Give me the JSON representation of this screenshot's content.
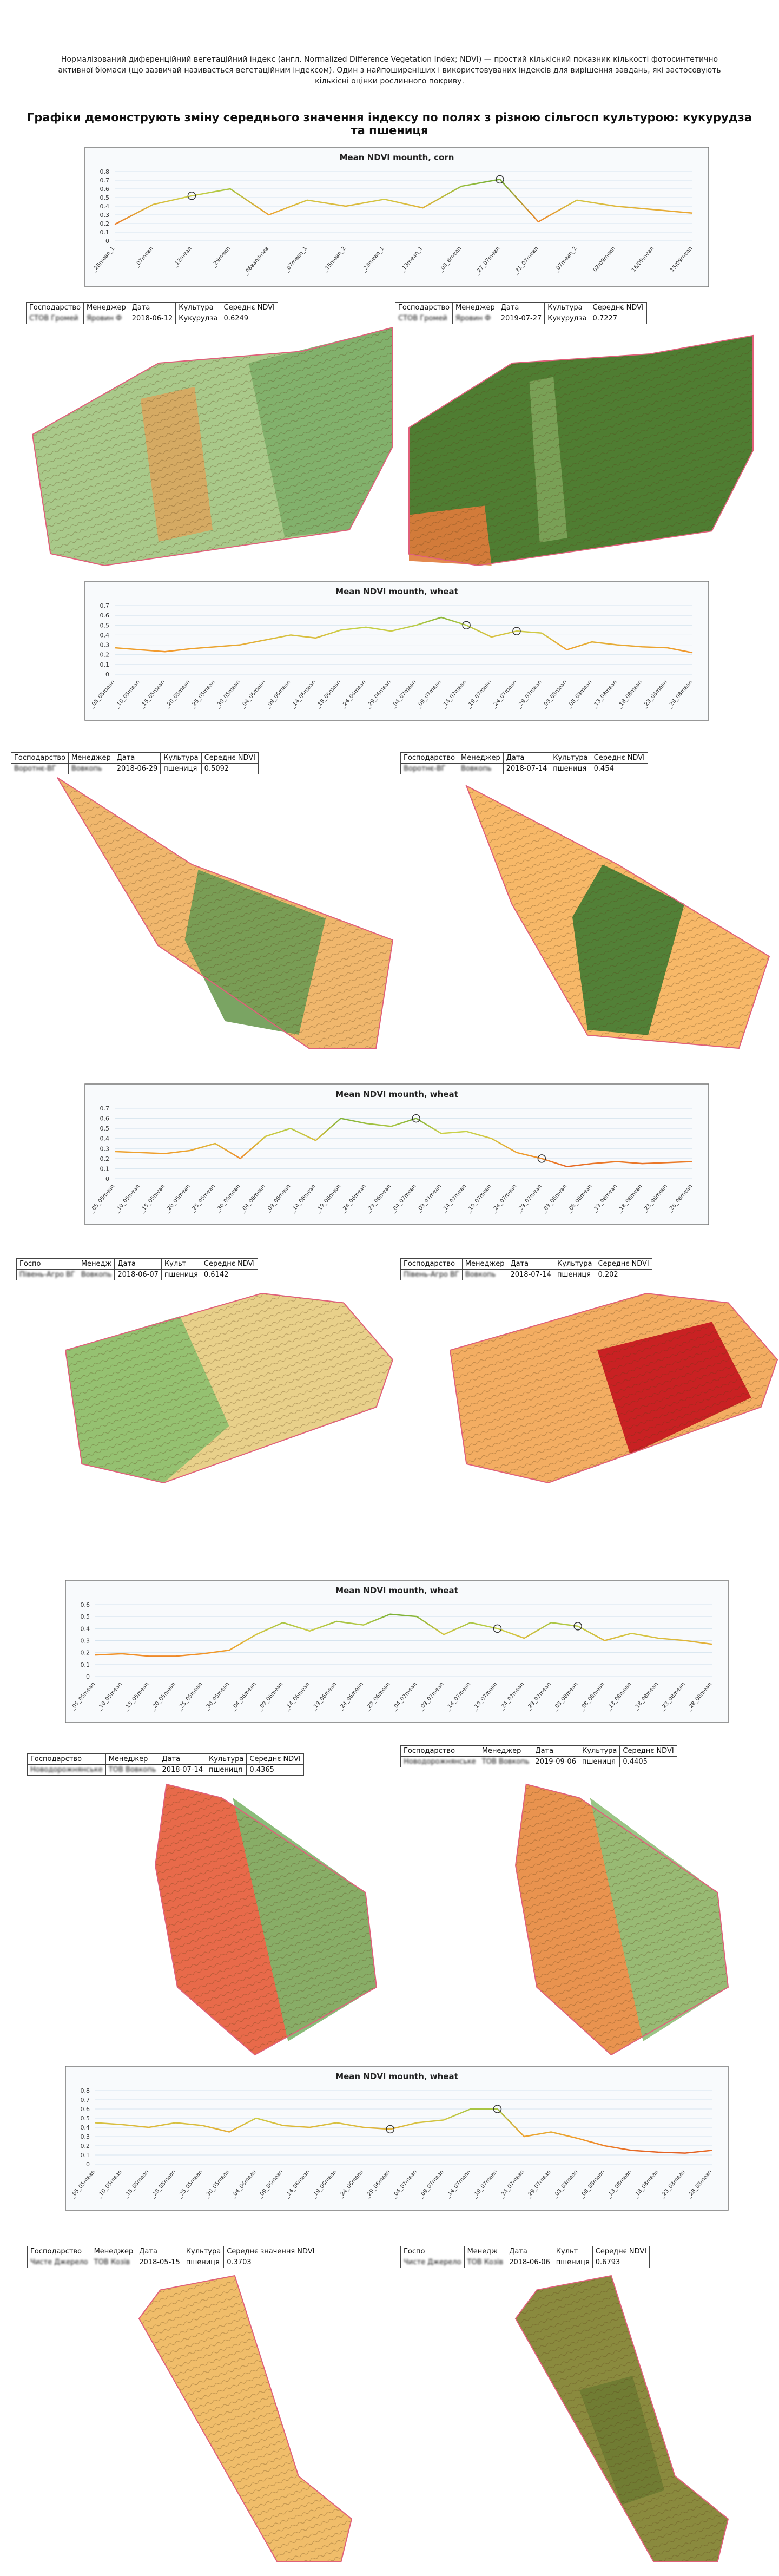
{
  "intro": "Нормалізований диференційний вегетаційний індекс (англ. Normalized Difference Vegetation Index; NDVI) — простий кількісний показник кількості фотосинтетично активної біомаси (що зазвичай називається вегетаційним індексом). Один з найпоширеніших і використовуваних індексів для вирішення завдань, які застосовують кількісні оцінки рослинного покриву.",
  "heading": "Графіки демонструють зміну середнього значення індексу по полях з різною сільгосп культурою: кукурудза та пшениця",
  "chart_data": [
    {
      "type": "line",
      "title": "Mean NDVI mounth, corn",
      "categories": [
        "_28mean_1",
        "_07mean",
        "_12mean",
        "_29mean",
        "_06вandmea",
        "_07mean_1",
        "_15mean_2",
        "_23mean_1",
        "_13mean_1",
        "_03_8mean",
        "_27_07mean",
        "_31_07mean",
        "_07mean_2",
        "02/09mean",
        "16/09mean",
        "15/09mean"
      ],
      "values": [
        0.19,
        0.42,
        0.52,
        0.6,
        0.3,
        0.47,
        0.4,
        0.48,
        0.38,
        0.63,
        0.71,
        0.22,
        0.47,
        0.4,
        0.36,
        0.32
      ],
      "highlight": [
        2,
        10
      ],
      "ylim": [
        0,
        0.8
      ],
      "yticks": [
        0,
        0.1,
        0.2,
        0.3,
        0.4,
        0.5,
        0.6,
        0.7,
        0.8
      ],
      "grid": true,
      "colormap": [
        "#d7301f",
        "#f39a2b",
        "#c9d34a",
        "#4a9a2c"
      ]
    },
    {
      "type": "line",
      "title": "Mean NDVI mounth, wheat",
      "categories": [
        "_05_05mean",
        "_10_05mean",
        "_15_05mean",
        "_20_05mean",
        "_25_05mean",
        "_30_05mean",
        "_04_06mean",
        "_09_06mean",
        "_14_06mean",
        "_19_06mean",
        "_24_06mean",
        "_29_06mean",
        "_04_07mean",
        "_09_07mean",
        "_14_07mean",
        "_19_07mean",
        "_24_07mean",
        "_29_07mean",
        "_03_08mean",
        "_08_08mean",
        "_13_08mean",
        "_18_08mean",
        "_23_08mean",
        "_28_08mean"
      ],
      "values": [
        0.27,
        0.25,
        0.23,
        0.26,
        0.28,
        0.3,
        0.35,
        0.4,
        0.37,
        0.45,
        0.48,
        0.44,
        0.5,
        0.58,
        0.5,
        0.38,
        0.44,
        0.42,
        0.25,
        0.33,
        0.3,
        0.28,
        0.27,
        0.22
      ],
      "highlight": [
        14,
        16
      ],
      "ylim": [
        0,
        0.7
      ],
      "yticks": [
        0,
        0.1,
        0.2,
        0.3,
        0.4,
        0.5,
        0.6,
        0.7
      ],
      "grid": true,
      "colormap": [
        "#d7301f",
        "#f39a2b",
        "#c9d34a",
        "#4a9a2c"
      ]
    },
    {
      "type": "line",
      "title": "Mean NDVI mounth, wheat",
      "categories": [
        "_05_05mean",
        "_10_05mean",
        "_15_05mean",
        "_20_05mean",
        "_25_05mean",
        "_30_05mean",
        "_04_06mean",
        "_09_06mean",
        "_14_06mean",
        "_19_06mean",
        "_24_06mean",
        "_29_06mean",
        "_04_07mean",
        "_09_07mean",
        "_14_07mean",
        "_19_07mean",
        "_24_07mean",
        "_29_07mean",
        "_03_08mean",
        "_08_08mean",
        "_13_08mean",
        "_18_08mean",
        "_23_08mean",
        "_28_08mean"
      ],
      "values": [
        0.27,
        0.26,
        0.25,
        0.28,
        0.35,
        0.2,
        0.42,
        0.5,
        0.38,
        0.6,
        0.55,
        0.52,
        0.6,
        0.45,
        0.47,
        0.4,
        0.26,
        0.2,
        0.12,
        0.15,
        0.17,
        0.15,
        0.16,
        0.17
      ],
      "highlight": [
        12,
        17
      ],
      "ylim": [
        0,
        0.7
      ],
      "yticks": [
        0,
        0.1,
        0.2,
        0.3,
        0.4,
        0.5,
        0.6,
        0.7
      ],
      "grid": true,
      "colormap": [
        "#d7301f",
        "#f39a2b",
        "#c9d34a",
        "#4a9a2c"
      ]
    },
    {
      "type": "line",
      "title": "Mean NDVI mounth, wheat",
      "categories": [
        "_05_05mean",
        "_10_05mean",
        "_15_05mean",
        "_20_05mean",
        "_25_05mean",
        "_30_05mean",
        "_04_06mean",
        "_09_06mean",
        "_14_06mean",
        "_19_06mean",
        "_24_06mean",
        "_29_06mean",
        "_04_07mean",
        "_09_07mean",
        "_14_07mean",
        "_19_07mean",
        "_24_07mean",
        "_29_07mean",
        "_03_08mean",
        "_08_08mean",
        "_13_08mean",
        "_18_08mean",
        "_23_08mean",
        "_28_08mean"
      ],
      "values": [
        0.18,
        0.19,
        0.17,
        0.17,
        0.19,
        0.22,
        0.35,
        0.45,
        0.38,
        0.46,
        0.43,
        0.52,
        0.5,
        0.35,
        0.45,
        0.4,
        0.32,
        0.45,
        0.42,
        0.3,
        0.36,
        0.32,
        0.3,
        0.27
      ],
      "highlight": [
        15,
        18
      ],
      "ylim": [
        0,
        0.6
      ],
      "yticks": [
        0,
        0.1,
        0.2,
        0.3,
        0.4,
        0.5,
        0.6
      ],
      "grid": true,
      "colormap": [
        "#d7301f",
        "#f39a2b",
        "#c9d34a",
        "#4a9a2c"
      ]
    },
    {
      "type": "line",
      "title": "Mean NDVI mounth, wheat",
      "categories": [
        "_05_05mean",
        "_10_05mean",
        "_15_05mean",
        "_20_05mean",
        "_25_05mean",
        "_30_05mean",
        "_04_06mean",
        "_09_06mean",
        "_14_06mean",
        "_19_06mean",
        "_24_06mean",
        "_29_06mean",
        "_04_07mean",
        "_09_07mean",
        "_14_07mean",
        "_19_07mean",
        "_24_07mean",
        "_29_07mean",
        "_03_08mean",
        "_08_08mean",
        "_13_08mean",
        "_18_08mean",
        "_23_08mean",
        "_28_08mean"
      ],
      "values": [
        0.45,
        0.43,
        0.4,
        0.45,
        0.42,
        0.35,
        0.5,
        0.42,
        0.4,
        0.45,
        0.4,
        0.38,
        0.45,
        0.48,
        0.6,
        0.6,
        0.3,
        0.35,
        0.28,
        0.2,
        0.15,
        0.13,
        0.12,
        0.15
      ],
      "highlight": [
        11,
        15
      ],
      "ylim": [
        0,
        0.8
      ],
      "yticks": [
        0,
        0.1,
        0.2,
        0.3,
        0.4,
        0.5,
        0.6,
        0.7,
        0.8
      ],
      "grid": true,
      "colormap": [
        "#d7301f",
        "#f39a2b",
        "#c9d34a",
        "#4a9a2c"
      ]
    }
  ],
  "tables": [
    {
      "columns": [
        "Господарство",
        "Менеджер",
        "Дата",
        "Культура",
        "Середнє NDVI"
      ],
      "row": [
        "СТОВ Громей",
        "Яровин Ф",
        "2018-06-12",
        "Кукурудза",
        0.6249
      ]
    },
    {
      "columns": [
        "Господарство",
        "Менеджер",
        "Дата",
        "Культура",
        "Середнє NDVI"
      ],
      "row": [
        "СТОВ Громей",
        "Яровин Ф",
        "2019-07-27",
        "Кукурудза",
        0.7227
      ]
    },
    {
      "columns": [
        "Господарство",
        "Менеджер",
        "Дата",
        "Культура",
        "Середнє NDVI"
      ],
      "row": [
        "Воротнє-ВГ",
        "Вовкопь",
        "2018-06-29",
        "пшениця",
        0.5092
      ]
    },
    {
      "columns": [
        "Господарство",
        "Менеджер",
        "Дата",
        "Культура",
        "Середнє NDVI"
      ],
      "row": [
        "Воротнє-ВГ",
        "Вовкопь",
        "2018-07-14",
        "пшениця",
        0.454
      ]
    },
    {
      "columns": [
        "Госпо",
        "Менедж",
        "Дата",
        "Культ",
        "Середнє NDVI"
      ],
      "row": [
        "Півень-Агро ВГ",
        "Вовкопь",
        "2018-06-07",
        "пшениця",
        0.6142
      ]
    },
    {
      "columns": [
        "Господарство",
        "Менеджер",
        "Дата",
        "Культура",
        "Середнє NDVI"
      ],
      "row": [
        "Півень-Агро ВГ",
        "Вовкопь",
        "2018-07-14",
        "пшениця",
        0.202
      ]
    },
    {
      "columns": [
        "Господарство",
        "Менеджер",
        "Дата",
        "Культура",
        "Середнє NDVI"
      ],
      "row": [
        "Новодорожнянське",
        "ТОВ Вовкопь",
        "2018-07-14",
        "пшениця",
        0.4365
      ]
    },
    {
      "columns": [
        "Господарство",
        "Менеджер",
        "Дата",
        "Культура",
        "Середнє NDVI"
      ],
      "row": [
        "Новодорожнянське",
        "ТОВ Вовкопь",
        "2019-09-06",
        "пшениця",
        0.4405
      ]
    },
    {
      "columns": [
        "Господарство",
        "Менеджер",
        "Дата",
        "Культура",
        "Середнє значення NDVI"
      ],
      "row": [
        "Чисте Джерело",
        "ТОВ Козів",
        "2018-05-15",
        "пшениця",
        0.3703
      ]
    },
    {
      "columns": [
        "Госпо",
        "Менедж",
        "Дата",
        "Культ",
        "Середнє NDVI"
      ],
      "row": [
        "Чисте Джерело",
        "ТОВ Козів",
        "2018-06-06",
        "пшениця",
        0.6793
      ]
    }
  ]
}
